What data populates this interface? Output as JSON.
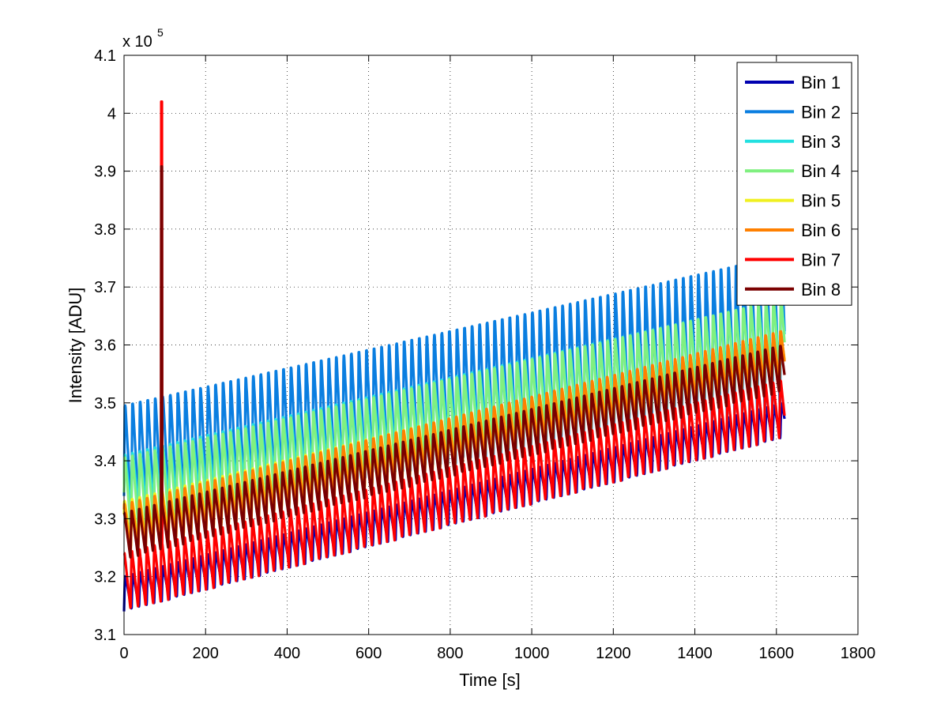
{
  "chart_data": {
    "type": "line",
    "title": "",
    "xlabel": "Time [s]",
    "ylabel": "Intensity [ADU]",
    "xlim": [
      0,
      1800
    ],
    "ylim": [
      310000,
      410000
    ],
    "x_ticks": [
      0,
      200,
      400,
      600,
      800,
      1000,
      1200,
      1400,
      1600,
      1800
    ],
    "y_ticks": [
      310000,
      320000,
      330000,
      340000,
      350000,
      360000,
      370000,
      380000,
      390000,
      400000,
      410000
    ],
    "y_tick_labels": [
      "3.1",
      "3.2",
      "3.3",
      "3.4",
      "3.5",
      "3.6",
      "3.7",
      "3.8",
      "3.9",
      "4",
      "4.1"
    ],
    "y_exponent_prefix": "x 10",
    "y_exponent_power": "5",
    "grid": true,
    "legend_position": "top-right",
    "period_s": 18.5,
    "spike": {
      "time_s": 92,
      "bins": [
        "Bin 7",
        "Bin 8"
      ],
      "peak_values": [
        402000,
        390800
      ]
    },
    "series": [
      {
        "name": "Bin 1",
        "color": "#0000b0",
        "time_range": [
          0,
          1620
        ],
        "baseline_start": 317000,
        "baseline_end": 347000,
        "amplitude": 6000
      },
      {
        "name": "Bin 2",
        "color": "#0a7ee0",
        "time_range": [
          0,
          1620
        ],
        "baseline_start": 340000,
        "baseline_end": 362000,
        "amplitude_start": 19000,
        "amplitude_end": 27000
      },
      {
        "name": "Bin 3",
        "color": "#22e0e0",
        "time_range": [
          0,
          1620
        ],
        "baseline_start": 336000,
        "baseline_end": 362000,
        "amplitude_start": 10000,
        "amplitude_end": 12000
      },
      {
        "name": "Bin 4",
        "color": "#80f080",
        "time_range": [
          0,
          1620
        ],
        "baseline_start": 334000,
        "baseline_end": 361000,
        "amplitude_start": 13000,
        "amplitude_end": 14000
      },
      {
        "name": "Bin 5",
        "color": "#f0f020",
        "time_range": [
          0,
          1620
        ],
        "baseline_start": 329000,
        "baseline_end": 358000,
        "amplitude": 8000
      },
      {
        "name": "Bin 6",
        "color": "#ff8000",
        "time_range": [
          0,
          1620
        ],
        "baseline_start": 328000,
        "baseline_end": 358000,
        "amplitude": 9000
      },
      {
        "name": "Bin 7",
        "color": "#ff0000",
        "time_range": [
          0,
          1620
        ],
        "baseline_start": 319000,
        "baseline_end": 349000,
        "amplitude": 10000
      },
      {
        "name": "Bin 8",
        "color": "#7a0000",
        "time_range": [
          0,
          1620
        ],
        "baseline_start": 327000,
        "baseline_end": 356000,
        "amplitude": 8000
      }
    ]
  }
}
